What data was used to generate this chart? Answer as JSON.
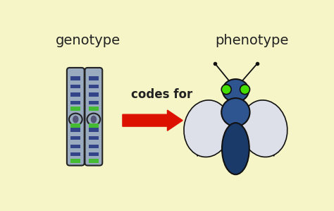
{
  "background_color": "#f5f5c8",
  "genotype_label": "genotype",
  "phenotype_label": "phenotype",
  "codes_for_label": "codes for",
  "label_fontsize": 14,
  "codes_fontsize": 12,
  "label_color": "#222222",
  "arrow_color": "#dd1100",
  "chrom_color_main": "#9aabbf",
  "chrom_color_dark": "#555577",
  "chrom_outline": "#222222",
  "chrom_band_blue": "#334488",
  "chrom_band_green": "#44bb33",
  "fly_body_dark": "#1a3a6a",
  "fly_body_mid": "#2e5590",
  "fly_eye_color": "#44dd00",
  "fly_wing_color": "#dde0e8",
  "fly_outline": "#111111"
}
